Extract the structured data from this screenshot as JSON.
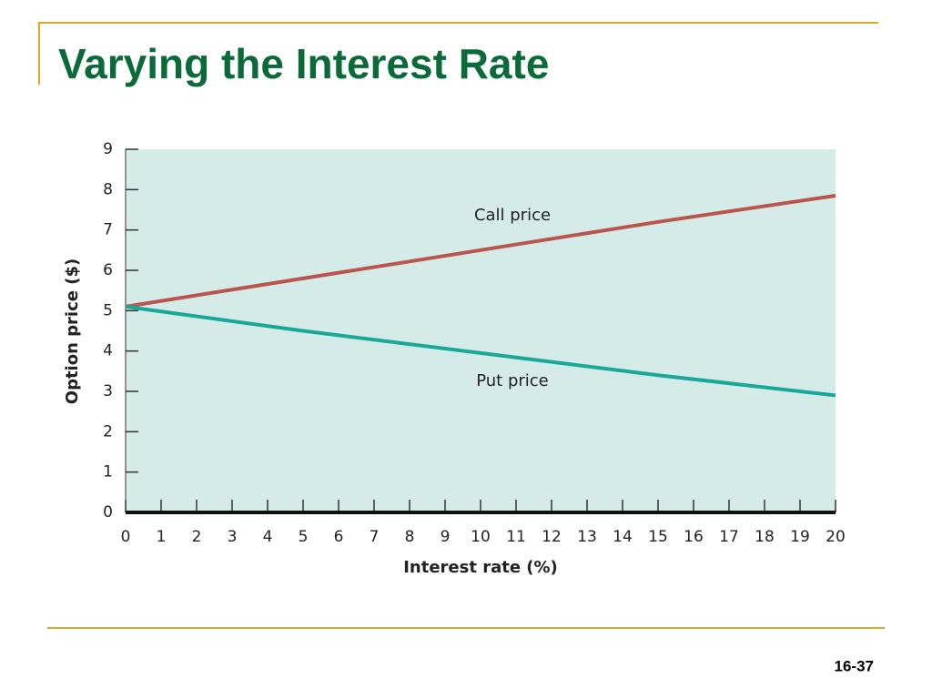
{
  "slide_title": "Varying the Interest Rate",
  "page_number": "16-37",
  "chart_data": {
    "type": "line",
    "x": [
      0,
      5,
      10,
      15,
      20
    ],
    "series": [
      {
        "name": "Call price",
        "color": "#b9554d",
        "values": [
          5.1,
          5.8,
          6.5,
          7.2,
          7.85
        ]
      },
      {
        "name": "Put price",
        "color": "#17a89b",
        "values": [
          5.1,
          4.5,
          3.95,
          3.4,
          2.9
        ]
      }
    ],
    "xlim": [
      0,
      20
    ],
    "ylim": [
      0,
      9
    ],
    "xticks": [
      0,
      1,
      2,
      3,
      4,
      5,
      6,
      7,
      8,
      9,
      10,
      11,
      12,
      13,
      14,
      15,
      16,
      17,
      18,
      19,
      20
    ],
    "yticks": [
      0,
      1,
      2,
      3,
      4,
      5,
      6,
      7,
      8,
      9
    ],
    "xlabel": "Interest rate (%)",
    "ylabel": "Option price ($)"
  }
}
